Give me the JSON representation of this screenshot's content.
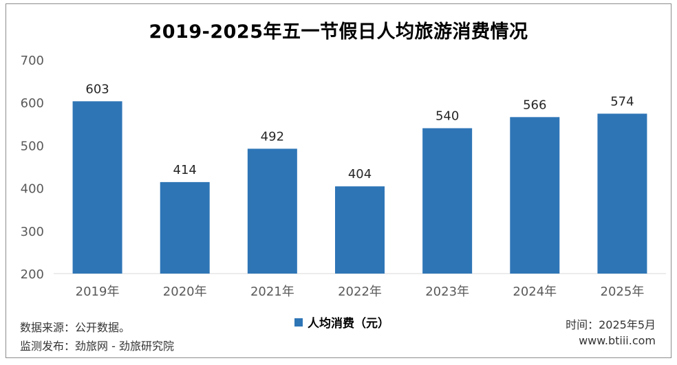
{
  "colors": {
    "bar": "#2e75b6",
    "gridline": "#d9d9d9",
    "axis_text": "#595959"
  },
  "chart_data": {
    "type": "bar",
    "title": "2019-2025年五一节假日人均旅游消费情况",
    "categories": [
      "2019年",
      "2020年",
      "2021年",
      "2022年",
      "2023年",
      "2024年",
      "2025年"
    ],
    "series": [
      {
        "name": "人均消费（元）",
        "values": [
          603,
          414,
          492,
          404,
          540,
          566,
          574
        ]
      }
    ],
    "data_labels": [
      "603",
      "414",
      "492",
      "404",
      "540",
      "566",
      "574"
    ],
    "ylim": [
      200,
      700
    ],
    "yticks": [
      200,
      300,
      400,
      500,
      600,
      700
    ],
    "grid": false,
    "legend": "bottom-center"
  },
  "footer": {
    "source": "数据来源：公开数据。",
    "publisher": "监测发布：劲旅网 - 劲旅研究院",
    "time": "时间：2025年5月",
    "website": "www.btiii.com"
  }
}
